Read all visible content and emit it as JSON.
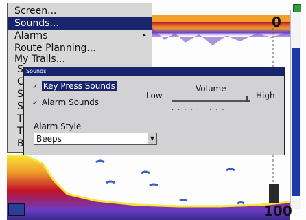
{
  "menu": {
    "items": [
      {
        "label": "Screen..."
      },
      {
        "label": "Sounds...",
        "selected": true
      },
      {
        "label": "Alarms",
        "has_submenu": true
      },
      {
        "label": "Route Planning..."
      },
      {
        "label": "My Trails..."
      }
    ],
    "obscured_letters": [
      "S",
      "C",
      "S",
      "S",
      "T",
      "T",
      "B"
    ]
  },
  "dialog": {
    "title": "Sounds",
    "key_press_sounds": {
      "label": "Key Press Sounds",
      "checked": true
    },
    "alarm_sounds": {
      "label": "Alarm Sounds",
      "checked": true
    },
    "volume": {
      "title": "Volume",
      "low_label": "Low",
      "high_label": "High",
      "level": 0.95
    },
    "alarm_style": {
      "label": "Alarm Style",
      "value": "Beeps"
    }
  },
  "sonar": {
    "depth_top": "0",
    "depth_bottom": "100"
  },
  "colors": {
    "menu_bg": "#d7d7d8",
    "selection": "#18246b",
    "dialog_bg": "#d2d2d4",
    "scale_blue": "#1c3aa8",
    "sonar_red": "#c0122a",
    "sonar_orange": "#f1a02a",
    "sonar_yellow": "#f6e43a",
    "sonar_purple": "#6a3cc8"
  }
}
